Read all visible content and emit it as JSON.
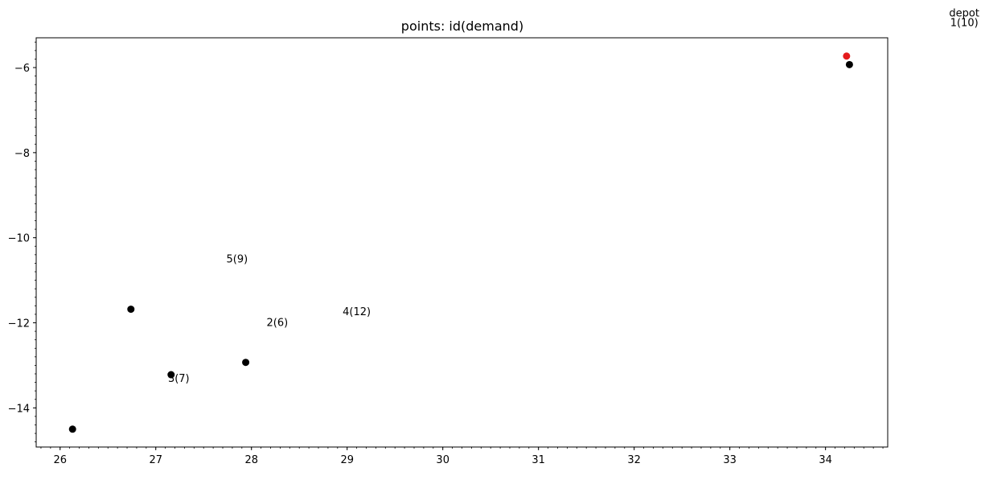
{
  "chart_data": {
    "type": "scatter",
    "title": "points: id(demand)",
    "xlabel": "",
    "ylabel": "",
    "xlim": [
      25.75,
      34.65
    ],
    "ylim": [
      -14.92,
      -5.3
    ],
    "x_ticks": [
      26,
      27,
      28,
      29,
      30,
      31,
      32,
      33,
      34
    ],
    "x_tick_labels": [
      "26",
      "27",
      "28",
      "29",
      "30",
      "31",
      "32",
      "33",
      "34"
    ],
    "y_ticks": [
      -6,
      -8,
      -10,
      -12,
      -14
    ],
    "y_tick_labels": [
      "−6",
      "−8",
      "−10",
      "−12",
      "−14"
    ],
    "minor_ticks": true,
    "grid": false,
    "legend": null,
    "colors": {
      "customer": "#000000",
      "depot": "#e41a1c"
    },
    "depot": {
      "x": 34.22,
      "y": -5.73
    },
    "customers": [
      {
        "x": 34.25,
        "y": -5.93
      },
      {
        "x": 26.74,
        "y": -11.68
      },
      {
        "x": 27.16,
        "y": -13.22
      },
      {
        "x": 27.94,
        "y": -12.93
      },
      {
        "x": 26.13,
        "y": -14.5
      }
    ],
    "annotations": [
      {
        "text": "depot",
        "x": 35.45,
        "y": -4.8
      },
      {
        "text": "1(10)",
        "x": 35.45,
        "y": -5.03
      },
      {
        "text": "5(9)",
        "x": 27.85,
        "y": -10.58
      },
      {
        "text": "2(6)",
        "x": 28.27,
        "y": -12.08
      },
      {
        "text": "4(12)",
        "x": 29.1,
        "y": -11.82
      },
      {
        "text": "3(7)",
        "x": 27.24,
        "y": -13.39
      }
    ]
  }
}
